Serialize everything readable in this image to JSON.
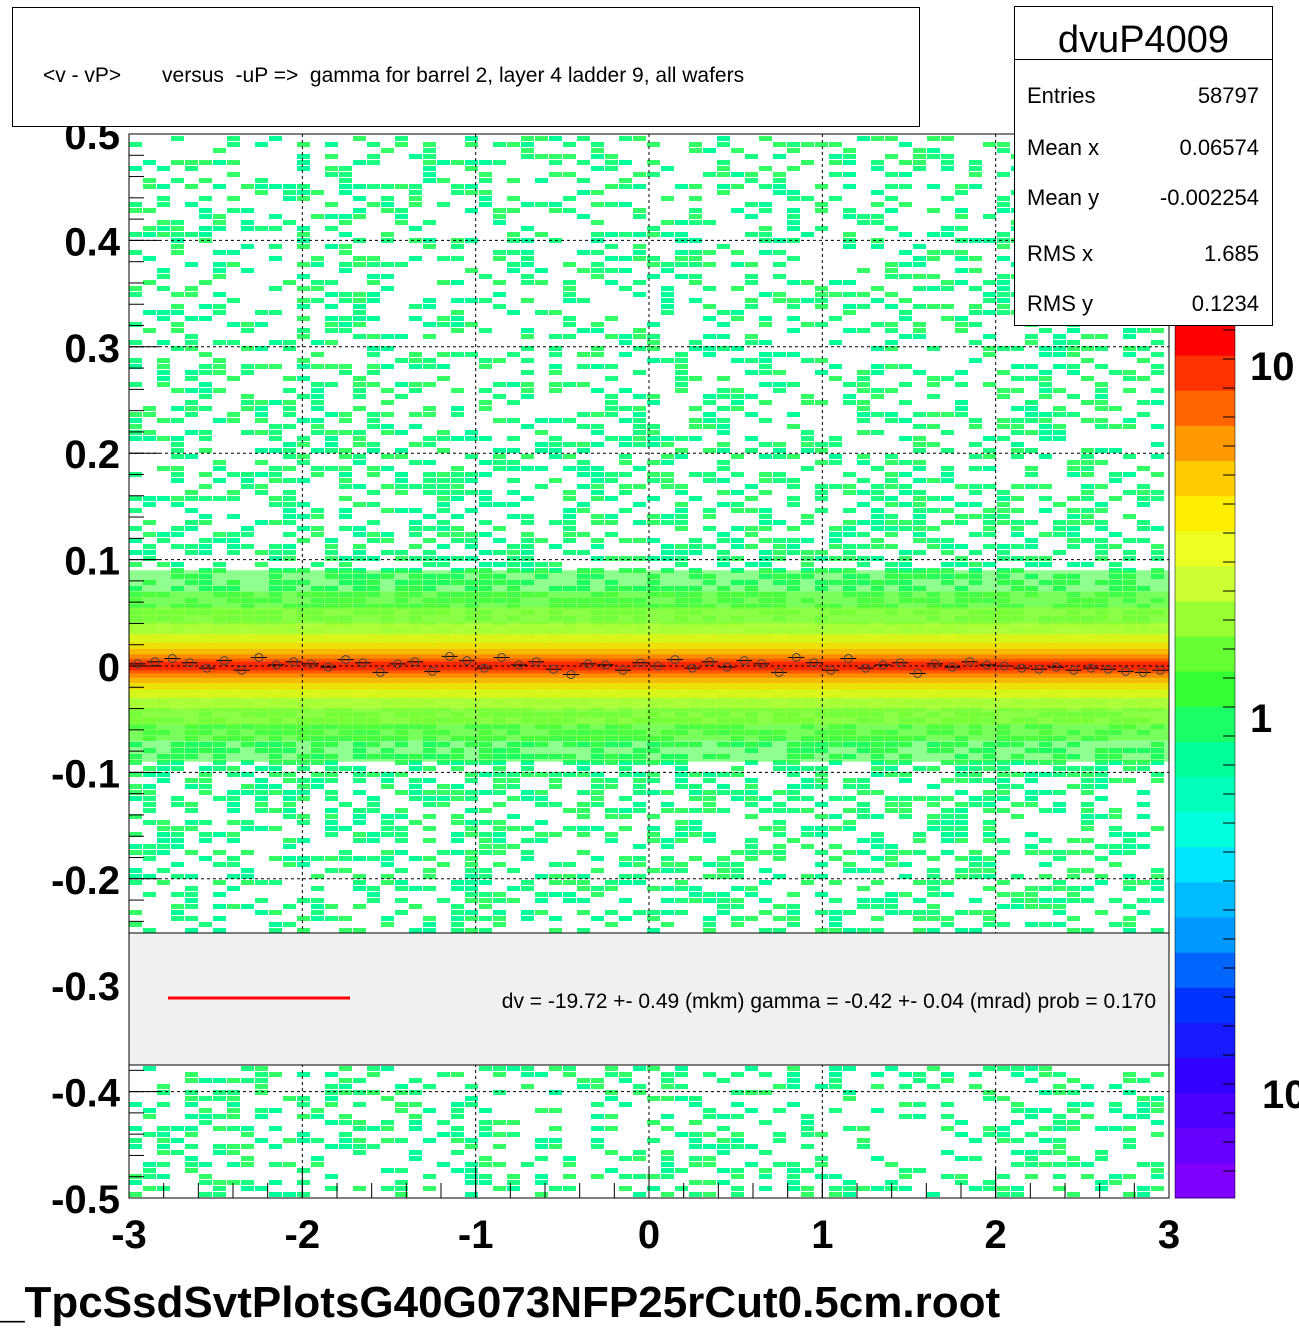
{
  "title": "<v - vP>       versus  -uP =>  gamma for barrel 2, layer 4 ladder 9, all wafers",
  "stats": {
    "name": "dvuP4009",
    "rows": [
      {
        "label": "Entries",
        "value": "58797"
      },
      {
        "label": "Mean x",
        "value": "0.06574"
      },
      {
        "label": "Mean y",
        "value": "-0.002254"
      },
      {
        "label": "RMS x",
        "value": "1.685"
      },
      {
        "label": "RMS y",
        "value": "0.1234"
      }
    ]
  },
  "legend": {
    "line_color": "#ff0000",
    "text": "dv =  -19.72 +-  0.49 (mkm) gamma =   -0.42 +-  0.04 (mrad) prob = 0.170"
  },
  "footer": "_TpcSsdSvtPlotsG40G073NFP25rCut0.5cm.root",
  "chart_data": {
    "type": "heatmap",
    "xlim": [
      -3,
      3
    ],
    "ylim": [
      -0.5,
      0.5
    ],
    "x_ticks": [
      -3,
      -2,
      -1,
      0,
      1,
      2,
      3
    ],
    "x_tick_labels": [
      "-3",
      "-2",
      "-1",
      "0",
      "1",
      "2",
      "3"
    ],
    "y_ticks": [
      0.5,
      0.4,
      0.3,
      0.2,
      0.1,
      0,
      -0.1,
      -0.2,
      -0.3,
      -0.4,
      -0.5
    ],
    "y_tick_labels": [
      "0.5",
      "0.4",
      "0.3",
      "0.2",
      "0.1",
      "0",
      "-0.1",
      "-0.2",
      "-0.3",
      "-0.4",
      "-0.5"
    ],
    "grid": true,
    "colorbar_labels": [
      {
        "label": "10",
        "value": 10
      },
      {
        "label": "1",
        "value": 1
      },
      {
        "label": "10",
        "value": 0.1
      }
    ],
    "palette": [
      "#7f00ff",
      "#6600ff",
      "#4c00ff",
      "#3300ff",
      "#1a1aff",
      "#0033ff",
      "#0066ff",
      "#0099ff",
      "#00bbff",
      "#00e5ff",
      "#00ffdd",
      "#00ffbb",
      "#00ff99",
      "#1aff66",
      "#33ff33",
      "#66ff33",
      "#99ff33",
      "#ccff33",
      "#eeff22",
      "#ffee00",
      "#ffcc00",
      "#ff9900",
      "#ff6600",
      "#ff3300",
      "#ff0000"
    ],
    "band": {
      "center_y": 0.0,
      "note": "dense band near v - vP = 0 across all x"
    },
    "profile_points": {
      "x": [
        -2.95,
        -2.85,
        -2.75,
        -2.65,
        -2.55,
        -2.45,
        -2.35,
        -2.25,
        -2.15,
        -2.05,
        -1.95,
        -1.85,
        -1.75,
        -1.65,
        -1.55,
        -1.45,
        -1.35,
        -1.25,
        -1.15,
        -1.05,
        -0.95,
        -0.85,
        -0.75,
        -0.65,
        -0.55,
        -0.45,
        -0.35,
        -0.25,
        -0.15,
        -0.05,
        0.05,
        0.15,
        0.25,
        0.35,
        0.45,
        0.55,
        0.65,
        0.75,
        0.85,
        0.95,
        1.05,
        1.15,
        1.25,
        1.35,
        1.45,
        1.55,
        1.65,
        1.75,
        1.85,
        1.95,
        2.05,
        2.15,
        2.25,
        2.35,
        2.45,
        2.55,
        2.65,
        2.75,
        2.85,
        2.95
      ],
      "y": [
        0.002,
        0.004,
        0.007,
        0.003,
        -0.002,
        0.005,
        -0.004,
        0.008,
        0.001,
        0.004,
        0.002,
        -0.001,
        0.006,
        0.003,
        -0.006,
        0.002,
        0.004,
        -0.005,
        0.009,
        0.005,
        -0.002,
        0.008,
        0.001,
        0.004,
        -0.003,
        -0.008,
        0.002,
        0.001,
        -0.004,
        0.003,
        0.0,
        0.006,
        -0.002,
        0.004,
        -0.001,
        0.005,
        0.002,
        -0.006,
        0.008,
        0.003,
        -0.004,
        0.007,
        -0.002,
        0.001,
        0.003,
        -0.007,
        0.002,
        -0.001,
        0.004,
        0.001,
        0.0,
        -0.002,
        -0.003,
        -0.001,
        -0.004,
        -0.002,
        -0.003,
        -0.005,
        -0.006,
        -0.004
      ]
    }
  }
}
